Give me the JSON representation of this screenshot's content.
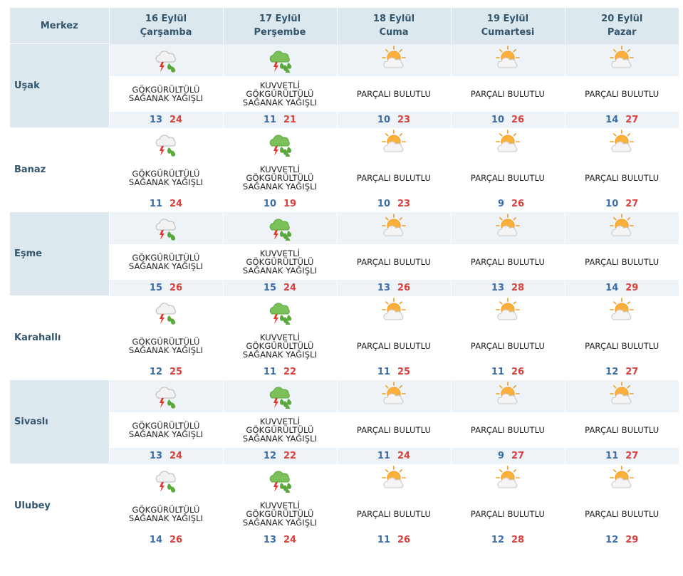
{
  "header": {
    "corner_label": "Merkez",
    "days": [
      {
        "date": "16 Eylül",
        "weekday": "Çarşamba"
      },
      {
        "date": "17 Eylül",
        "weekday": "Perşembe"
      },
      {
        "date": "18 Eylül",
        "weekday": "Cuma"
      },
      {
        "date": "19 Eylül",
        "weekday": "Cumartesi"
      },
      {
        "date": "20 Eylül",
        "weekday": "Pazar"
      }
    ]
  },
  "colors": {
    "header_bg": "#dde7ee",
    "header_text": "#33566e",
    "low_temp": "#3d6ea8",
    "high_temp": "#d9413d",
    "stripe": "#eef3f7"
  },
  "rows": [
    {
      "city": "Uşak",
      "forecast": [
        {
          "icon": "thunderstorm-icon",
          "desc": [
            "GÖKGÜRÜLTÜLÜ",
            "SAĞANAK YAĞIŞLI"
          ],
          "low": "13",
          "high": "24"
        },
        {
          "icon": "heavy-thunderstorm-icon",
          "desc": [
            "KUVVETLİ",
            "GÖKGÜRÜLTÜLÜ",
            "SAĞANAK YAĞIŞLI"
          ],
          "low": "11",
          "high": "21"
        },
        {
          "icon": "partly-cloudy-icon",
          "desc": [
            "PARÇALI BULUTLU"
          ],
          "low": "10",
          "high": "23"
        },
        {
          "icon": "partly-cloudy-icon",
          "desc": [
            "PARÇALI BULUTLU"
          ],
          "low": "10",
          "high": "26"
        },
        {
          "icon": "partly-cloudy-icon",
          "desc": [
            "PARÇALI BULUTLU"
          ],
          "low": "14",
          "high": "27"
        }
      ]
    },
    {
      "city": "Banaz",
      "forecast": [
        {
          "icon": "thunderstorm-icon",
          "desc": [
            "GÖKGÜRÜLTÜLÜ",
            "SAĞANAK YAĞIŞLI"
          ],
          "low": "11",
          "high": "24"
        },
        {
          "icon": "heavy-thunderstorm-icon",
          "desc": [
            "KUVVETLİ",
            "GÖKGÜRÜLTÜLÜ",
            "SAĞANAK YAĞIŞLI"
          ],
          "low": "10",
          "high": "19"
        },
        {
          "icon": "partly-cloudy-icon",
          "desc": [
            "PARÇALI BULUTLU"
          ],
          "low": "10",
          "high": "23"
        },
        {
          "icon": "partly-cloudy-icon",
          "desc": [
            "PARÇALI BULUTLU"
          ],
          "low": "9",
          "high": "26"
        },
        {
          "icon": "partly-cloudy-icon",
          "desc": [
            "PARÇALI BULUTLU"
          ],
          "low": "10",
          "high": "27"
        }
      ]
    },
    {
      "city": "Eşme",
      "forecast": [
        {
          "icon": "thunderstorm-icon",
          "desc": [
            "GÖKGÜRÜLTÜLÜ",
            "SAĞANAK YAĞIŞLI"
          ],
          "low": "15",
          "high": "26"
        },
        {
          "icon": "heavy-thunderstorm-icon",
          "desc": [
            "KUVVETLİ",
            "GÖKGÜRÜLTÜLÜ",
            "SAĞANAK YAĞIŞLI"
          ],
          "low": "15",
          "high": "24"
        },
        {
          "icon": "partly-cloudy-icon",
          "desc": [
            "PARÇALI BULUTLU"
          ],
          "low": "13",
          "high": "26"
        },
        {
          "icon": "partly-cloudy-icon",
          "desc": [
            "PARÇALI BULUTLU"
          ],
          "low": "13",
          "high": "28"
        },
        {
          "icon": "partly-cloudy-icon",
          "desc": [
            "PARÇALI BULUTLU"
          ],
          "low": "14",
          "high": "29"
        }
      ]
    },
    {
      "city": "Karahallı",
      "forecast": [
        {
          "icon": "thunderstorm-icon",
          "desc": [
            "GÖKGÜRÜLTÜLÜ",
            "SAĞANAK YAĞIŞLI"
          ],
          "low": "12",
          "high": "25"
        },
        {
          "icon": "heavy-thunderstorm-icon",
          "desc": [
            "KUVVETLİ",
            "GÖKGÜRÜLTÜLÜ",
            "SAĞANAK YAĞIŞLI"
          ],
          "low": "11",
          "high": "22"
        },
        {
          "icon": "partly-cloudy-icon",
          "desc": [
            "PARÇALI BULUTLU"
          ],
          "low": "11",
          "high": "25"
        },
        {
          "icon": "partly-cloudy-icon",
          "desc": [
            "PARÇALI BULUTLU"
          ],
          "low": "11",
          "high": "26"
        },
        {
          "icon": "partly-cloudy-icon",
          "desc": [
            "PARÇALI BULUTLU"
          ],
          "low": "12",
          "high": "27"
        }
      ]
    },
    {
      "city": "Sivaslı",
      "forecast": [
        {
          "icon": "thunderstorm-icon",
          "desc": [
            "GÖKGÜRÜLTÜLÜ",
            "SAĞANAK YAĞIŞLI"
          ],
          "low": "13",
          "high": "24"
        },
        {
          "icon": "heavy-thunderstorm-icon",
          "desc": [
            "KUVVETLİ",
            "GÖKGÜRÜLTÜLÜ",
            "SAĞANAK YAĞIŞLI"
          ],
          "low": "12",
          "high": "22"
        },
        {
          "icon": "partly-cloudy-icon",
          "desc": [
            "PARÇALI BULUTLU"
          ],
          "low": "11",
          "high": "24"
        },
        {
          "icon": "partly-cloudy-icon",
          "desc": [
            "PARÇALI BULUTLU"
          ],
          "low": "9",
          "high": "27"
        },
        {
          "icon": "partly-cloudy-icon",
          "desc": [
            "PARÇALI BULUTLU"
          ],
          "low": "11",
          "high": "27"
        }
      ]
    },
    {
      "city": "Ulubey",
      "forecast": [
        {
          "icon": "thunderstorm-icon",
          "desc": [
            "GÖKGÜRÜLTÜLÜ",
            "SAĞANAK YAĞIŞLI"
          ],
          "low": "14",
          "high": "26"
        },
        {
          "icon": "heavy-thunderstorm-icon",
          "desc": [
            "KUVVETLİ",
            "GÖKGÜRÜLTÜLÜ",
            "SAĞANAK YAĞIŞLI"
          ],
          "low": "13",
          "high": "24"
        },
        {
          "icon": "partly-cloudy-icon",
          "desc": [
            "PARÇALI BULUTLU"
          ],
          "low": "11",
          "high": "26"
        },
        {
          "icon": "partly-cloudy-icon",
          "desc": [
            "PARÇALI BULUTLU"
          ],
          "low": "12",
          "high": "28"
        },
        {
          "icon": "partly-cloudy-icon",
          "desc": [
            "PARÇALI BULUTLU"
          ],
          "low": "12",
          "high": "29"
        }
      ]
    }
  ]
}
